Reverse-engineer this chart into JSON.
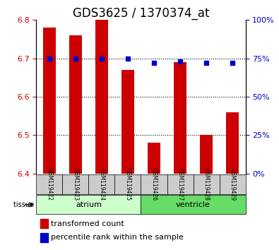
{
  "title": "GDS3625 / 1370374_at",
  "samples": [
    "GSM119422",
    "GSM119423",
    "GSM119424",
    "GSM119425",
    "GSM119426",
    "GSM119427",
    "GSM119428",
    "GSM119429"
  ],
  "bar_values": [
    6.78,
    6.76,
    6.8,
    6.67,
    6.48,
    6.69,
    6.5,
    6.56
  ],
  "dot_values": [
    6.7,
    6.7,
    6.7,
    6.7,
    6.68,
    6.69,
    6.68,
    6.68
  ],
  "dot_percentiles": [
    75,
    75,
    75,
    75,
    72,
    73,
    72,
    72
  ],
  "ylim_left": [
    6.4,
    6.8
  ],
  "ylim_right": [
    0,
    100
  ],
  "yticks_left": [
    6.4,
    6.5,
    6.6,
    6.7,
    6.8
  ],
  "yticks_right": [
    0,
    25,
    50,
    75,
    100
  ],
  "bar_color": "#cc0000",
  "dot_color": "#0000cc",
  "bar_bottom": 6.4,
  "groups": [
    {
      "label": "atrium",
      "start": 0,
      "end": 4,
      "color": "#ccffcc"
    },
    {
      "label": "ventricle",
      "start": 4,
      "end": 8,
      "color": "#66dd66"
    }
  ],
  "tissue_label": "tissue",
  "legend_bar_label": "transformed count",
  "legend_dot_label": "percentile rank within the sample",
  "grid_color": "#000000",
  "background_color": "#ffffff",
  "plot_bg": "#ffffff",
  "tick_label_color_left": "#cc0000",
  "tick_label_color_right": "#0000cc",
  "sample_box_color": "#cccccc",
  "title_fontsize": 12,
  "axis_fontsize": 8,
  "legend_fontsize": 8
}
